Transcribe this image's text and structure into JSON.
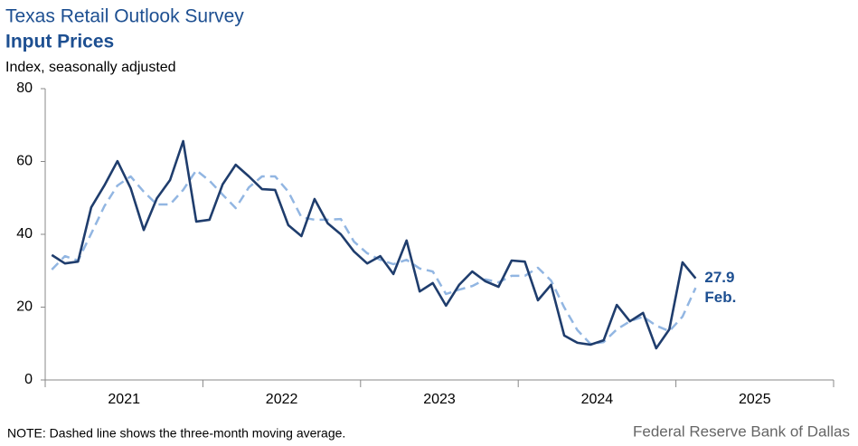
{
  "chart_data": {
    "type": "line",
    "title": "Texas Retail Outlook Survey",
    "subtitle": "Input Prices",
    "y_label": "Index, seasonally adjusted",
    "note": "NOTE: Dashed line shows the three-month  moving average.",
    "source": "Federal Reserve Bank of Dallas",
    "annotation": "Feb.",
    "x": [
      2021.042,
      2021.125,
      2021.208,
      2021.292,
      2021.375,
      2021.458,
      2021.542,
      2021.625,
      2021.708,
      2021.792,
      2021.875,
      2021.958,
      2022.042,
      2022.125,
      2022.208,
      2022.292,
      2022.375,
      2022.458,
      2022.542,
      2022.625,
      2022.708,
      2022.792,
      2022.875,
      2022.958,
      2023.042,
      2023.125,
      2023.208,
      2023.292,
      2023.375,
      2023.458,
      2023.542,
      2023.625,
      2023.708,
      2023.792,
      2023.875,
      2023.958,
      2024.042,
      2024.125,
      2024.208,
      2024.292,
      2024.375,
      2024.458,
      2024.542,
      2024.625,
      2024.708,
      2024.792,
      2024.875,
      2024.958,
      2025.042,
      2025.125
    ],
    "series": [
      {
        "name": "Input prices index",
        "color": "#1f3d6d",
        "dash": false,
        "values": [
          34.3,
          32.0,
          32.5,
          47.4,
          53.4,
          60.1,
          52.7,
          41.2,
          49.9,
          54.9,
          65.6,
          43.5,
          44.0,
          53.7,
          59.1,
          55.9,
          52.4,
          52.2,
          42.5,
          39.5,
          49.7,
          43.0,
          40.0,
          35.3,
          32.0,
          34.0,
          29.1,
          38.3,
          24.3,
          26.6,
          20.4,
          26.1,
          29.8,
          27.1,
          25.6,
          32.8,
          32.5,
          21.9,
          26.1,
          12.2,
          10.2,
          9.7,
          10.9,
          20.6,
          16.1,
          18.4,
          8.7,
          13.9,
          32.3,
          27.9
        ]
      },
      {
        "name": "Three-month moving average",
        "color": "#92b6e2",
        "dash": true,
        "values": [
          30.3,
          34.0,
          32.8,
          40.2,
          47.7,
          53.4,
          55.9,
          51.7,
          48.2,
          48.2,
          52.2,
          57.6,
          54.7,
          50.9,
          47.2,
          52.9,
          55.9,
          55.9,
          51.7,
          44.7,
          44.0,
          44.0,
          44.2,
          38.0,
          34.8,
          33.0,
          31.8,
          33.0,
          30.6,
          29.8,
          23.6,
          24.8,
          25.8,
          27.6,
          26.8,
          28.6,
          28.6,
          30.8,
          27.3,
          19.9,
          13.7,
          9.9,
          10.4,
          13.9,
          16.1,
          17.4,
          14.9,
          13.4,
          17.4,
          25.3
        ]
      }
    ],
    "xlim": [
      2021,
      2026
    ],
    "xticks": [
      2021,
      2022,
      2023,
      2024,
      2025,
      2026
    ],
    "year_labels": [
      "2021",
      "2022",
      "2023",
      "2024",
      "2025"
    ],
    "ylim": [
      0,
      80
    ],
    "yticks": [
      0,
      20,
      40,
      60,
      80
    ],
    "grid": false
  }
}
